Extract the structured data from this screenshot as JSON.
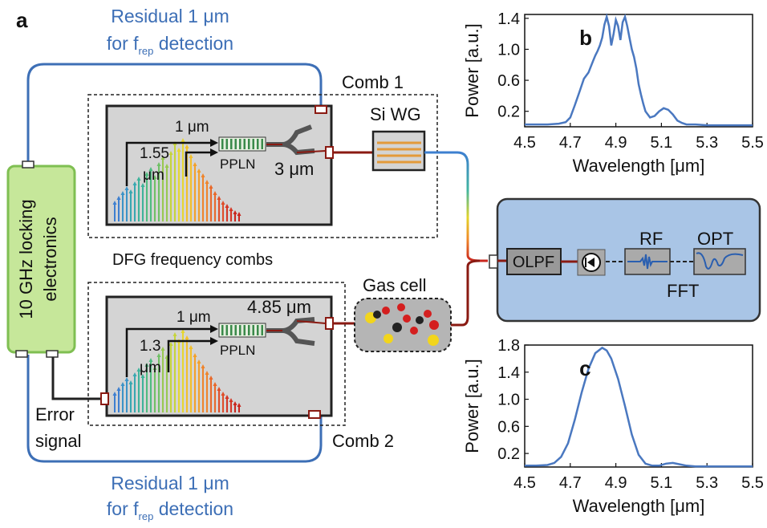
{
  "panel_a": {
    "label": "a",
    "residual_top_1": "Residual 1 μm",
    "residual_top_2_prefix": "for f",
    "residual_top_2_sub": "rep",
    "residual_top_2_suffix": " detection",
    "residual_bottom_1": "Residual 1 μm",
    "residual_bottom_2_prefix": "for f",
    "residual_bottom_2_sub": "rep",
    "residual_bottom_2_suffix": " detection",
    "locking_line1": "10 GHz locking",
    "locking_line2": "electronics",
    "error_line1": "Error",
    "error_line2": "signal",
    "dfg_label": "DFG frequency combs",
    "comb1": {
      "title": "Comb 1",
      "pump": "1 μm",
      "signal_1": "1.55",
      "signal_2": "μm",
      "crystal": "PPLN",
      "output": "3 μm"
    },
    "comb2": {
      "title": "Comb 2",
      "pump": "1 μm",
      "signal_1": "1.3",
      "signal_2": "μm",
      "crystal": "PPLN",
      "output": "4.85 μm"
    },
    "waveguide": "Si WG",
    "gas_cell": "Gas cell",
    "detection": {
      "olpf": "OLPF",
      "rf": "RF",
      "fft": "FFT",
      "opt": "OPT"
    }
  },
  "chart_data": [
    {
      "panel": "b",
      "type": "line",
      "xlabel": "Wavelength [μm]",
      "ylabel": "Power [a.u.]",
      "xlim": [
        4.5,
        5.5
      ],
      "ylim": [
        0,
        1.45
      ],
      "xticks": [
        "4.5",
        "4.7",
        "4.9",
        "5.1",
        "5.3",
        "5.5"
      ],
      "yticks": [
        "0.2",
        "0.6",
        "1.0",
        "1.4"
      ],
      "color": "#4a78c0",
      "x": [
        4.5,
        4.55,
        4.6,
        4.65,
        4.68,
        4.7,
        4.72,
        4.74,
        4.76,
        4.78,
        4.8,
        4.81,
        4.82,
        4.83,
        4.84,
        4.85,
        4.86,
        4.87,
        4.88,
        4.89,
        4.9,
        4.91,
        4.92,
        4.93,
        4.94,
        4.95,
        4.96,
        4.97,
        4.98,
        4.99,
        5.0,
        5.01,
        5.02,
        5.03,
        5.05,
        5.07,
        5.09,
        5.11,
        5.13,
        5.15,
        5.17,
        5.19,
        5.21,
        5.25,
        5.3,
        5.4,
        5.5
      ],
      "y": [
        0.03,
        0.03,
        0.03,
        0.04,
        0.06,
        0.12,
        0.28,
        0.45,
        0.62,
        0.7,
        0.85,
        0.92,
        0.98,
        1.05,
        1.15,
        1.32,
        1.42,
        1.3,
        1.05,
        1.2,
        1.38,
        1.3,
        1.12,
        1.35,
        1.42,
        1.3,
        1.15,
        1.0,
        0.9,
        0.75,
        0.55,
        0.42,
        0.3,
        0.2,
        0.12,
        0.14,
        0.2,
        0.24,
        0.22,
        0.16,
        0.08,
        0.05,
        0.03,
        0.03,
        0.02,
        0.02,
        0.02
      ]
    },
    {
      "panel": "c",
      "type": "line",
      "xlabel": "Wavelength [μm]",
      "ylabel": "Power [a.u.]",
      "xlim": [
        4.5,
        5.5
      ],
      "ylim": [
        0,
        1.8
      ],
      "xticks": [
        "4.5",
        "4.7",
        "4.9",
        "5.1",
        "5.3",
        "5.5"
      ],
      "yticks": [
        "0.2",
        "0.6",
        "1.0",
        "1.4",
        "1.8"
      ],
      "color": "#4a78c0",
      "x": [
        4.5,
        4.55,
        4.6,
        4.63,
        4.66,
        4.69,
        4.72,
        4.75,
        4.78,
        4.81,
        4.84,
        4.86,
        4.88,
        4.91,
        4.94,
        4.97,
        5.0,
        5.03,
        5.06,
        5.09,
        5.12,
        5.15,
        5.18,
        5.21,
        5.25,
        5.3,
        5.4,
        5.5
      ],
      "y": [
        0.02,
        0.02,
        0.03,
        0.06,
        0.15,
        0.35,
        0.7,
        1.1,
        1.45,
        1.68,
        1.76,
        1.72,
        1.6,
        1.3,
        0.9,
        0.48,
        0.18,
        0.05,
        0.02,
        0.02,
        0.05,
        0.06,
        0.04,
        0.02,
        0.01,
        0.01,
        0.01,
        0.01
      ]
    }
  ]
}
